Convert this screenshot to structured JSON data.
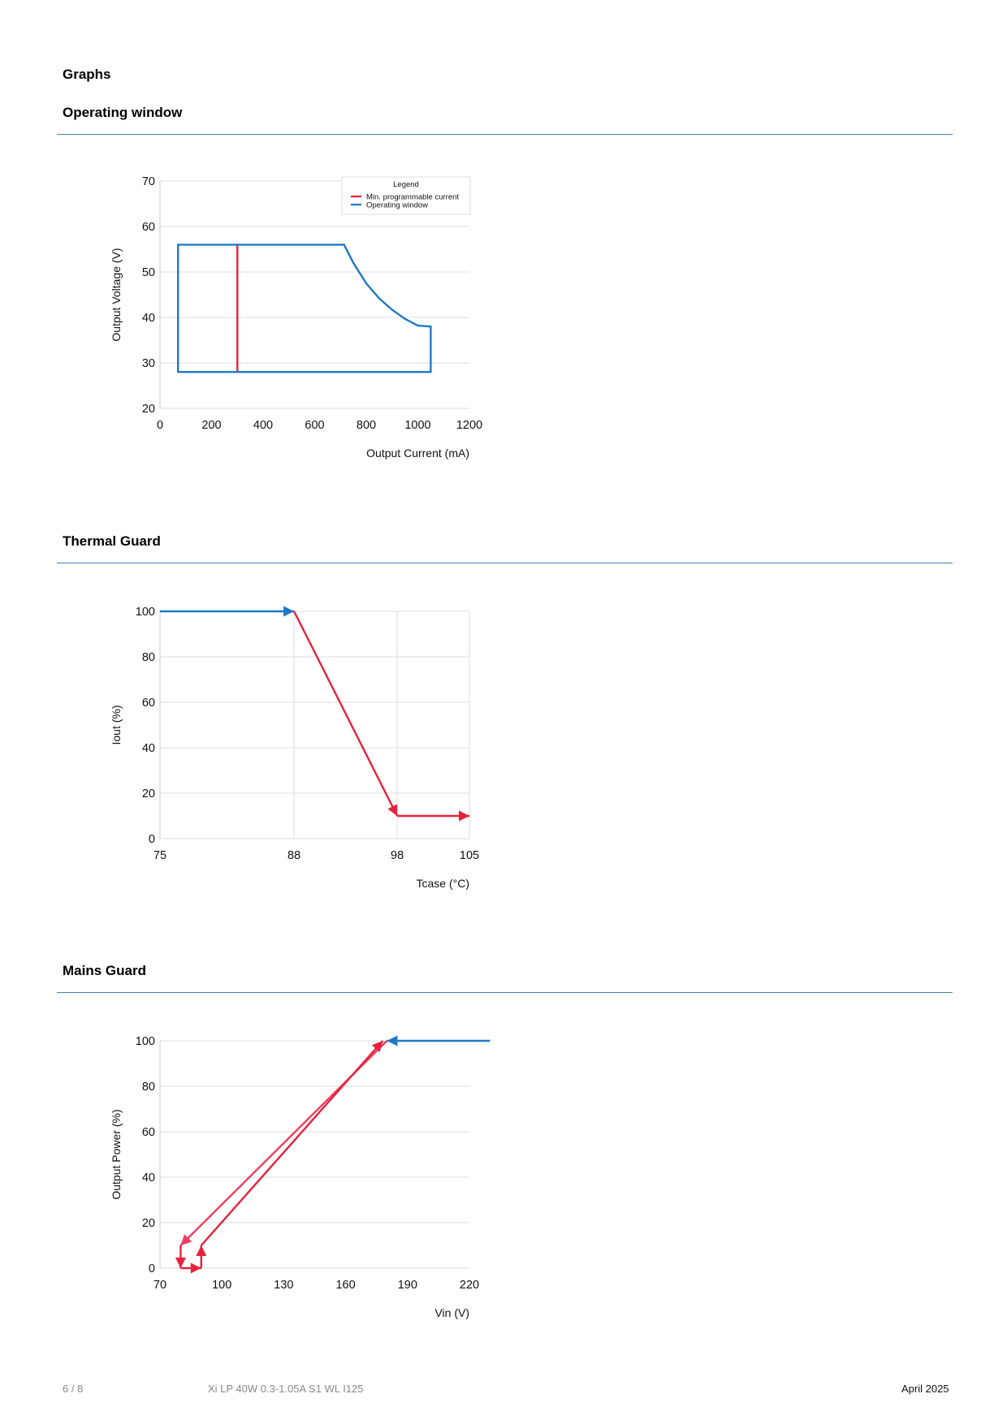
{
  "heading": "Graphs",
  "sections": {
    "operating": "Operating window",
    "thermal": "Thermal Guard",
    "mains": "Mains Guard"
  },
  "footer": {
    "page": "6 / 8",
    "product": "Xi LP 40W 0.3-1.05A S1 WL I125",
    "date": "April 2025"
  },
  "colors": {
    "blue": "#1f78c8",
    "red": "#e8213b",
    "rule": "#4a7fb5",
    "grid": "#dddddd"
  },
  "chart_data": [
    {
      "type": "line",
      "title": "Operating window",
      "xlabel": "Output Current (mA)",
      "ylabel": "Output Voltage (V)",
      "xlim": [
        0,
        1200
      ],
      "ylim": [
        20,
        70
      ],
      "xticks": [
        0,
        200,
        400,
        600,
        800,
        1000,
        1200
      ],
      "yticks": [
        20,
        30,
        40,
        50,
        60,
        70
      ],
      "legend_title": "Legend",
      "legend_position": "top-right",
      "grid": "horizontal",
      "series": [
        {
          "name": "Min. programmable current",
          "color": "#e8213b",
          "points": [
            [
              300,
              28
            ],
            [
              300,
              56
            ]
          ]
        },
        {
          "name": "Operating window",
          "color": "#1f78c8",
          "closed": true,
          "points": [
            [
              70,
              28
            ],
            [
              70,
              56
            ],
            [
              714,
              56
            ],
            [
              750,
              52
            ],
            [
              800,
              47.5
            ],
            [
              850,
              44.2
            ],
            [
              900,
              41.7
            ],
            [
              950,
              39.7
            ],
            [
              1000,
              38.2
            ],
            [
              1050,
              38
            ],
            [
              1050,
              28
            ]
          ]
        }
      ]
    },
    {
      "type": "line",
      "title": "Thermal Guard",
      "xlabel": "Tcase (°C)",
      "ylabel": "Iout (%)",
      "xlim": [
        75,
        105
      ],
      "ylim": [
        0,
        100
      ],
      "xticks": [
        75,
        88,
        98,
        105
      ],
      "yticks": [
        0,
        20,
        40,
        60,
        80,
        100
      ],
      "grid": "both",
      "series": [
        {
          "color": "#1f78c8",
          "points": [
            [
              75,
              100
            ],
            [
              88,
              100
            ]
          ],
          "arrow_end": true
        },
        {
          "color": "#e8213b",
          "points": [
            [
              88,
              100
            ],
            [
              98,
              10
            ]
          ],
          "arrow_end": true
        },
        {
          "color": "#e8213b",
          "points": [
            [
              98,
              10
            ],
            [
              105,
              10
            ]
          ],
          "arrow_end": true
        }
      ]
    },
    {
      "type": "line",
      "title": "Mains Guard",
      "xlabel": "Vin (V)",
      "ylabel": "Output Power (%)",
      "xlim": [
        70,
        220
      ],
      "ylim": [
        0,
        100
      ],
      "xticks": [
        70,
        100,
        130,
        160,
        190,
        220
      ],
      "yticks": [
        0,
        20,
        40,
        60,
        80,
        100
      ],
      "grid": "horizontal",
      "series": [
        {
          "color": "#1f78c8",
          "points": [
            [
              230,
              100
            ],
            [
              180,
              100
            ]
          ],
          "arrow_end": true
        },
        {
          "color": "#f23d5e",
          "points": [
            [
              180,
              100
            ],
            [
              80,
              10
            ]
          ],
          "arrow_end": true
        },
        {
          "color": "#e8213b",
          "points": [
            [
              80,
              10
            ],
            [
              80,
              0
            ]
          ],
          "arrow_end": true
        },
        {
          "color": "#e8213b",
          "points": [
            [
              80,
              0
            ],
            [
              90,
              0
            ]
          ],
          "arrow_end": true
        },
        {
          "color": "#e8213b",
          "points": [
            [
              90,
              0
            ],
            [
              90,
              10
            ]
          ],
          "arrow_end": true
        },
        {
          "color": "#e8213b",
          "points": [
            [
              90,
              10
            ],
            [
              178,
              100
            ]
          ],
          "arrow_end": true
        }
      ]
    }
  ]
}
